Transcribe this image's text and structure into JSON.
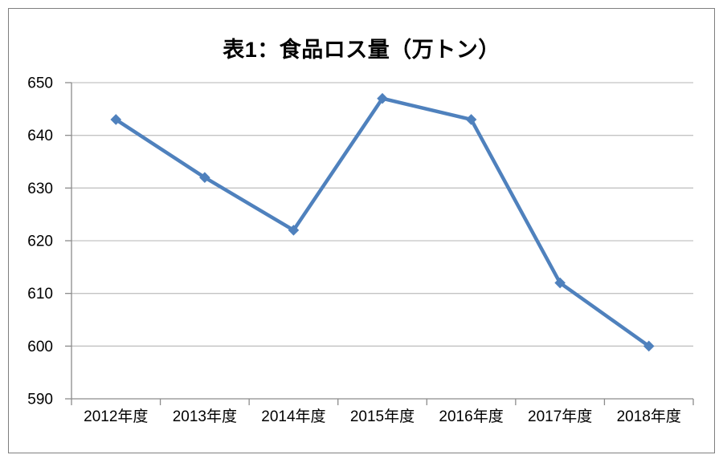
{
  "chart": {
    "colors": {
      "series": "#4F81BD",
      "gridline": "#C3C3C3",
      "axis": "#8C8C8C",
      "frame_border": "#7F7F7F",
      "background": "#FFFFFF",
      "text": "#000000"
    }
  },
  "chart_data": {
    "type": "line",
    "title": "表1：食品ロス量（万トン）",
    "categories": [
      "2012年度",
      "2013年度",
      "2014年度",
      "2015年度",
      "2016年度",
      "2017年度",
      "2018年度"
    ],
    "values": [
      643,
      632,
      622,
      647,
      643,
      612,
      600
    ],
    "xlabel": "",
    "ylabel": "",
    "ylim": [
      590,
      650
    ],
    "yticks": [
      650,
      640,
      630,
      620,
      610,
      600,
      590
    ],
    "grid": true,
    "legend_position": "none",
    "marker": "diamond"
  }
}
